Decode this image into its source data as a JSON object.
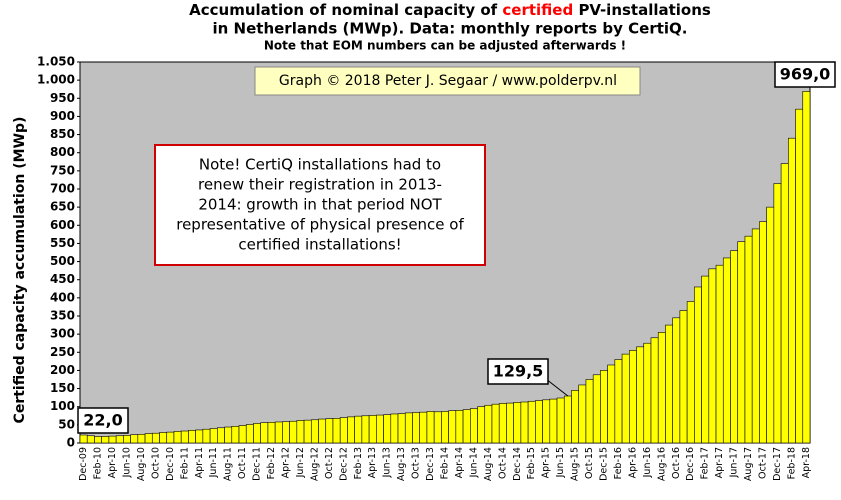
{
  "chart_data": {
    "type": "bar",
    "title": [
      "Accumulation  of nominal  capacity of ",
      "certified",
      " PV-installations"
    ],
    "title_line2": "in Netherlands (MWp). Data: monthly  reports by CertiQ.",
    "subtitle": "Note that EOM numbers can be adjusted afterwards  !",
    "credit": "Graph © 2018 Peter J. Segaar / www.polderpv.nl",
    "note": [
      "Note! CertiQ installations had to",
      "renew their registration in 2013-",
      "2014:  growth in that period NOT",
      "representative of physical presence of",
      "certified installations!"
    ],
    "y_label": "Certified capacity accumulation (MWp)",
    "color": "#ffff00",
    "title_highlight_color": "#ff0000",
    "categories": [
      "Dec-09",
      null,
      "Feb-10",
      null,
      "Apr-10",
      null,
      "Jun-10",
      null,
      "Aug-10",
      null,
      "Oct-10",
      null,
      "Dec-10",
      null,
      "Feb-11",
      null,
      "Apr-11",
      null,
      "Jun-11",
      null,
      "Aug-11",
      null,
      "Oct-11",
      null,
      "Dec-11",
      null,
      "Feb-12",
      null,
      "Apr-12",
      null,
      "Jun-12",
      null,
      "Aug-12",
      null,
      "Oct-12",
      null,
      "Dec-12",
      null,
      "Feb-13",
      null,
      "Apr-13",
      null,
      "Jun-13",
      null,
      "Aug-13",
      null,
      "Oct-13",
      null,
      "Dec-13",
      null,
      "Feb-14",
      null,
      "Apr-14",
      null,
      "Jun-14",
      null,
      "Aug-14",
      null,
      "Oct-14",
      null,
      "Dec-14",
      null,
      "Feb-15",
      null,
      "Apr-15",
      null,
      "Jun-15",
      null,
      "Aug-15",
      null,
      "Oct-15",
      null,
      "Dec-15",
      null,
      "Feb-16",
      null,
      "Apr-16",
      null,
      "Jun-16",
      null,
      "Aug-16",
      null,
      "Oct-16",
      null,
      "Dec-16",
      null,
      "Feb-17",
      null,
      "Apr-17",
      null,
      "Jun-17",
      null,
      "Aug-17",
      null,
      "Oct-17",
      null,
      "Dec-17",
      null,
      "Feb-18",
      null,
      "Apr-18"
    ],
    "values": [
      22,
      20,
      18,
      18,
      19,
      20,
      21,
      23,
      24,
      26,
      27,
      29,
      30,
      32,
      33,
      35,
      36,
      38,
      40,
      42,
      44,
      46,
      48,
      51,
      54,
      56,
      57,
      58,
      59,
      60,
      62,
      63,
      64,
      66,
      67,
      68,
      70,
      72,
      74,
      75,
      76,
      77,
      78,
      80,
      81,
      83,
      84,
      85,
      87,
      86,
      87,
      89,
      90,
      92,
      95,
      100,
      104,
      107,
      109,
      110,
      112,
      113,
      115,
      117,
      119,
      121,
      124,
      129.5,
      145,
      160,
      175,
      188,
      200,
      215,
      230,
      245,
      255,
      265,
      275,
      290,
      305,
      325,
      345,
      365,
      390,
      430,
      460,
      480,
      490,
      510,
      530,
      555,
      570,
      590,
      610,
      650,
      715,
      770,
      840,
      920,
      969
    ],
    "value_labels": [
      "22,0",
      null,
      null,
      null,
      null,
      null,
      null,
      null,
      null,
      null,
      null,
      null,
      null,
      null,
      null,
      null,
      null,
      null,
      null,
      null,
      null,
      null,
      null,
      null,
      null,
      null,
      null,
      null,
      null,
      null,
      null,
      null,
      null,
      null,
      null,
      null,
      null,
      null,
      null,
      null,
      null,
      null,
      null,
      null,
      null,
      null,
      null,
      null,
      null,
      null,
      null,
      null,
      null,
      null,
      null,
      null,
      null,
      null,
      null,
      null,
      null,
      null,
      null,
      null,
      null,
      null,
      null,
      "129,5",
      null,
      null,
      null,
      null,
      null,
      null,
      null,
      null,
      null,
      null,
      null,
      null,
      null,
      null,
      null,
      null,
      null,
      null,
      null,
      null,
      null,
      null,
      null,
      null,
      null,
      null,
      null,
      null,
      null,
      null,
      null,
      null,
      "969,0"
    ],
    "ylim": [
      0,
      1050
    ],
    "yticks": [
      0,
      50,
      100,
      150,
      200,
      250,
      300,
      350,
      400,
      450,
      500,
      550,
      600,
      650,
      700,
      750,
      800,
      850,
      900,
      950,
      {
        "value": 1000,
        "label": "1.000"
      },
      {
        "value": 1050,
        "label": "1.050"
      }
    ],
    "grid": false,
    "plot_background": "#c0c0c0"
  }
}
